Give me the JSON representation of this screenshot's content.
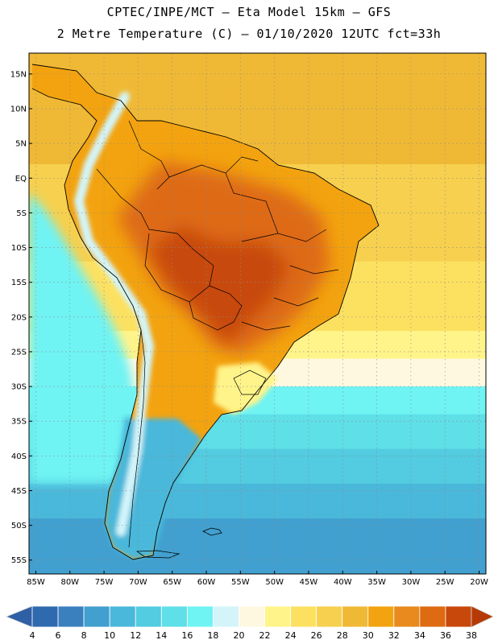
{
  "header": {
    "line1": "CPTEC/INPE/MCT –  Eta Model 15km – GFS",
    "line2": "2 Metre Temperature (C) – 01/10/2020 12UTC fct=33h"
  },
  "map": {
    "lon_range": [
      -86,
      -19
    ],
    "lat_range": [
      18,
      -57
    ],
    "lat_ticks": [
      {
        "value": 15,
        "label": "15N"
      },
      {
        "value": 10,
        "label": "10N"
      },
      {
        "value": 5,
        "label": "5N"
      },
      {
        "value": 0,
        "label": "EQ"
      },
      {
        "value": -5,
        "label": "5S"
      },
      {
        "value": -10,
        "label": "10S"
      },
      {
        "value": -15,
        "label": "15S"
      },
      {
        "value": -20,
        "label": "20S"
      },
      {
        "value": -25,
        "label": "25S"
      },
      {
        "value": -30,
        "label": "30S"
      },
      {
        "value": -35,
        "label": "35S"
      },
      {
        "value": -40,
        "label": "40S"
      },
      {
        "value": -45,
        "label": "45S"
      },
      {
        "value": -50,
        "label": "50S"
      },
      {
        "value": -55,
        "label": "55S"
      }
    ],
    "lon_ticks": [
      {
        "value": -85,
        "label": "85W"
      },
      {
        "value": -80,
        "label": "80W"
      },
      {
        "value": -75,
        "label": "75W"
      },
      {
        "value": -70,
        "label": "70W"
      },
      {
        "value": -65,
        "label": "65W"
      },
      {
        "value": -60,
        "label": "60W"
      },
      {
        "value": -55,
        "label": "55W"
      },
      {
        "value": -50,
        "label": "50W"
      },
      {
        "value": -45,
        "label": "45W"
      },
      {
        "value": -40,
        "label": "40W"
      },
      {
        "value": -35,
        "label": "35W"
      },
      {
        "value": -30,
        "label": "30W"
      },
      {
        "value": -25,
        "label": "25W"
      },
      {
        "value": -20,
        "label": "20W"
      }
    ],
    "field": {
      "ocean_bands": [
        {
          "lat_from": 18,
          "lat_to": 2,
          "temp": 28
        },
        {
          "lat_from": 2,
          "lat_to": -12,
          "temp": 26
        },
        {
          "lat_from": -12,
          "lat_to": -22,
          "temp": 24
        },
        {
          "lat_from": -22,
          "lat_to": -26,
          "temp": 22
        },
        {
          "lat_from": -26,
          "lat_to": -30,
          "temp": 20
        },
        {
          "lat_from": -30,
          "lat_to": -34,
          "temp": 16
        },
        {
          "lat_from": -34,
          "lat_to": -39,
          "temp": 14
        },
        {
          "lat_from": -39,
          "lat_to": -44,
          "temp": 12
        },
        {
          "lat_from": -44,
          "lat_to": -49,
          "temp": 10
        },
        {
          "lat_from": -49,
          "lat_to": -57,
          "temp": 8
        }
      ],
      "pacific_band_temp": 16,
      "continent_base_temp": 30,
      "warm_core_temp": 34,
      "hot_core_temp": 36,
      "andes_temp": 18,
      "patagonia_temp": 10,
      "southern_cone_temp": 22
    }
  },
  "colorbar": {
    "levels": [
      4,
      6,
      8,
      10,
      12,
      14,
      16,
      18,
      20,
      22,
      24,
      26,
      28,
      30,
      32,
      34,
      36,
      38
    ],
    "labels": [
      "4",
      "6",
      "8",
      "10",
      "12",
      "14",
      "16",
      "18",
      "20",
      "22",
      "24",
      "26",
      "28",
      "30",
      "32",
      "34",
      "36",
      "38"
    ],
    "colors": [
      "#2f5fa5",
      "#2f6aae",
      "#3a80bf",
      "#41a0cf",
      "#4ab8da",
      "#53cbe0",
      "#5fdfe8",
      "#6ff3f3",
      "#d3f5fa",
      "#fff8e1",
      "#fff48a",
      "#fce161",
      "#f6d04e",
      "#f0b935",
      "#f3a30f",
      "#e88a1e",
      "#de6a12",
      "#c8480b",
      "#b53a05"
    ]
  }
}
